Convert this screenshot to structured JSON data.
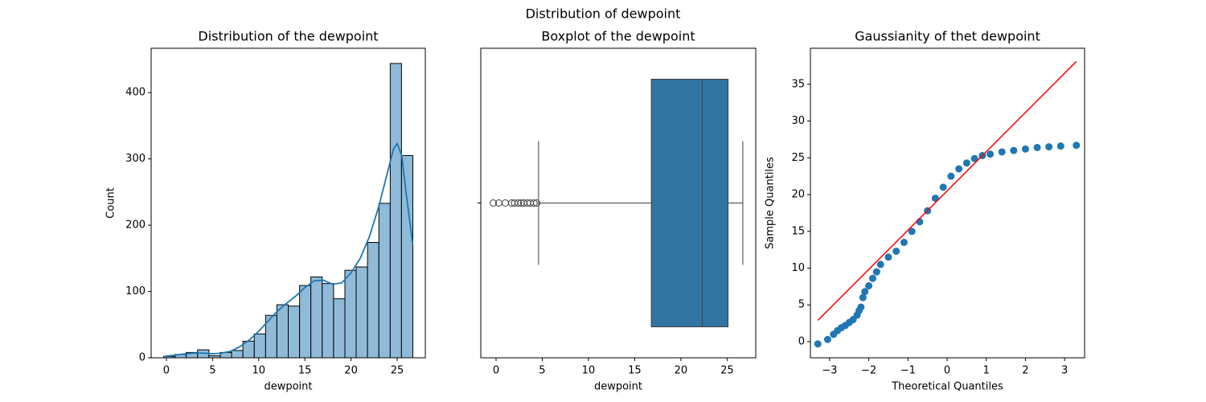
{
  "title": "Distribution of dewpoint",
  "chart_data": [
    {
      "type": "histogram",
      "title": "Distribution of the dewpoint",
      "xlabel": "dewpoint",
      "ylabel": "Count",
      "bins": [
        -0.3,
        0.93,
        2.15,
        3.38,
        4.61,
        5.84,
        7.06,
        8.29,
        9.52,
        10.75,
        11.97,
        13.2,
        14.43,
        15.65,
        16.88,
        18.11,
        19.34,
        20.56,
        21.79,
        23.02,
        24.25,
        25.47,
        26.7
      ],
      "values": [
        2,
        5,
        8,
        12,
        3,
        8,
        11,
        25,
        36,
        64,
        80,
        78,
        109,
        122,
        112,
        89,
        132,
        137,
        174,
        233,
        444,
        305
      ],
      "color": "#8fbbd9",
      "edgecolor": "#000000",
      "kde": {
        "color": "#1f77b4",
        "x": [
          -0.3,
          1,
          2,
          3,
          4,
          5,
          6,
          7,
          8,
          9,
          10,
          11,
          12,
          13,
          14,
          15,
          16,
          17,
          18,
          19,
          20,
          21,
          22,
          23,
          24,
          24.6,
          25,
          25.5,
          26,
          26.7
        ],
        "values": [
          2,
          4,
          6,
          7,
          7,
          6,
          7,
          10,
          17,
          27,
          40,
          55,
          70,
          82,
          93,
          106,
          116,
          117,
          111,
          113,
          128,
          150,
          183,
          228,
          282,
          315,
          323,
          305,
          245,
          170
        ]
      },
      "xlim": [
        -1.65,
        28.05
      ],
      "ylim": [
        0,
        467
      ],
      "xticks": [
        0,
        5,
        10,
        15,
        20,
        25
      ],
      "yticks": [
        0,
        100,
        200,
        300,
        400
      ]
    },
    {
      "type": "box",
      "title": "Boxplot of the dewpoint",
      "xlabel": "dewpoint",
      "color": "#3274a1",
      "q1": 16.8,
      "median": 22.3,
      "q3": 25.1,
      "whisker_low": 4.6,
      "whisker_high": 26.7,
      "outliers": [
        -0.3,
        0.3,
        1.0,
        1.7,
        2.0,
        2.4,
        2.7,
        3.0,
        3.4,
        3.7,
        4.1,
        4.4
      ],
      "xlim": [
        -1.65,
        28.1
      ],
      "xticks": [
        0,
        5,
        10,
        15,
        20,
        25
      ]
    },
    {
      "type": "scatter",
      "title": "Gaussianity of thet  dewpoint",
      "xlabel": "Theoretical Quantiles",
      "ylabel": "Sample Quantiles",
      "color": "#1f77b4",
      "x": [
        -3.3,
        -3.05,
        -2.9,
        -2.8,
        -2.7,
        -2.6,
        -2.5,
        -2.4,
        -2.3,
        -2.25,
        -2.2,
        -2.15,
        -2.1,
        -2.0,
        -1.9,
        -1.8,
        -1.7,
        -1.5,
        -1.3,
        -1.1,
        -0.9,
        -0.7,
        -0.5,
        -0.3,
        -0.1,
        0.1,
        0.3,
        0.5,
        0.7,
        0.9,
        1.1,
        1.4,
        1.7,
        2.0,
        2.3,
        2.6,
        2.9,
        3.3
      ],
      "values": [
        -0.3,
        0.3,
        1.0,
        1.5,
        1.9,
        2.2,
        2.6,
        3.0,
        3.6,
        4.2,
        4.7,
        6.0,
        6.8,
        7.6,
        8.6,
        9.5,
        10.5,
        11.5,
        12.3,
        13.5,
        15.0,
        16.3,
        17.8,
        19.5,
        21.0,
        22.5,
        23.5,
        24.3,
        24.9,
        25.3,
        25.5,
        25.8,
        26.0,
        26.2,
        26.4,
        26.5,
        26.6,
        26.7
      ],
      "line": {
        "color": "#ff0000",
        "x": [
          -3.3,
          3.3
        ],
        "values": [
          2.9,
          38.1
        ]
      },
      "xlim": [
        -3.49,
        3.51
      ],
      "ylim": [
        -2.19,
        39.9
      ],
      "xticks": [
        {
          "value": -3,
          "label": "−3"
        },
        {
          "value": -2,
          "label": "−2"
        },
        {
          "value": -1,
          "label": "−1"
        },
        0,
        1,
        2,
        3
      ],
      "yticks": [
        0,
        5,
        10,
        15,
        20,
        25,
        30,
        35
      ]
    }
  ]
}
